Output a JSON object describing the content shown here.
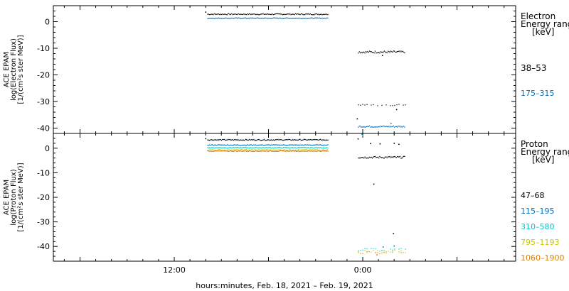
{
  "xlabel": "hours:minutes, Feb. 18, 2021 – Feb. 19, 2021",
  "x_ticks": [
    "12:00",
    "0:00"
  ],
  "chart_data": [
    {
      "type": "scatter",
      "panel": "electron",
      "ylabel": [
        "ACE EPAM",
        "log(Electron Flux)",
        "[1/(cm²s ster MeV)]"
      ],
      "ylim": [
        -42,
        6
      ],
      "yticks": [
        0,
        -10,
        -20,
        -30,
        -40
      ],
      "legend_title": [
        "Electron",
        "Energy range",
        "[keV]"
      ],
      "series": [
        {
          "name": "38–53",
          "color": "#000000",
          "segments": [
            {
              "x": [
                -9.9,
                -2.2
              ],
              "y": 2.8,
              "jitter": 0.2
            },
            {
              "x": [
                -0.3,
                2.7
              ],
              "y": -11.4,
              "jitter": 0.4
            },
            {
              "x": [
                -0.3,
                2.7
              ],
              "y": -31.3,
              "jitter": 0.4,
              "sparse": true
            }
          ],
          "points": [
            {
              "x": -10.0,
              "y": 3.6
            },
            {
              "x": 2.15,
              "y": -33.0
            },
            {
              "x": 1.25,
              "y": -12.7
            },
            {
              "x": -0.35,
              "y": -36.5
            }
          ]
        },
        {
          "name": "175–315",
          "color": "#0070c0",
          "segments": [
            {
              "x": [
                -9.9,
                -2.2
              ],
              "y": 1.3,
              "jitter": 0.15
            },
            {
              "x": [
                -0.3,
                2.7
              ],
              "y": -39.4,
              "jitter": 0.3
            }
          ],
          "points": [
            {
              "x": 1.8,
              "y": -38.2
            }
          ]
        }
      ]
    },
    {
      "type": "scatter",
      "panel": "proton",
      "ylabel": [
        "ACE EPAM",
        "log(Proton Flux)",
        "[1/(cm²s ster MeV)]"
      ],
      "ylim": [
        -46,
        6
      ],
      "yticks": [
        0,
        -10,
        -20,
        -30,
        -40
      ],
      "legend_title": [
        "Proton",
        "Energy range",
        "[keV]"
      ],
      "series": [
        {
          "name": "47–68",
          "color": "#000000",
          "segments": [
            {
              "x": [
                -9.9,
                -2.2
              ],
              "y": 3.4,
              "jitter": 0.2
            },
            {
              "x": [
                -0.3,
                2.7
              ],
              "y": -3.7,
              "jitter": 0.4
            }
          ],
          "points": [
            {
              "x": -10.0,
              "y": 3.9
            },
            {
              "x": 0.5,
              "y": 1.9
            },
            {
              "x": 1.1,
              "y": 1.8
            },
            {
              "x": 2.0,
              "y": 2.0
            },
            {
              "x": 2.3,
              "y": 1.6
            },
            {
              "x": 0.7,
              "y": -14.6
            },
            {
              "x": 1.95,
              "y": -34.8
            },
            {
              "x": -0.3,
              "y": 3.8
            }
          ]
        },
        {
          "name": "115–195",
          "color": "#0070c0",
          "segments": [
            {
              "x": [
                -9.9,
                -2.2
              ],
              "y": 1.3,
              "jitter": 0.15
            }
          ],
          "points": [
            {
              "x": -0.05,
              "y": 5.7
            },
            {
              "x": 1.3,
              "y": -40.2
            },
            {
              "x": 2.0,
              "y": -39.8
            }
          ]
        },
        {
          "name": "310–580",
          "color": "#00c8c8",
          "segments": [
            {
              "x": [
                -9.9,
                -2.2
              ],
              "y": 0.2,
              "jitter": 0.15
            },
            {
              "x": [
                -0.3,
                2.7
              ],
              "y": -41.3,
              "jitter": 0.5,
              "sparse": true
            }
          ],
          "points": [
            {
              "x": 0.0,
              "y": 5.2
            }
          ]
        },
        {
          "name": "795–1193",
          "color": "#c8c800",
          "segments": [
            {
              "x": [
                -9.9,
                -2.2
              ],
              "y": -0.7,
              "jitter": 0.15
            },
            {
              "x": [
                -0.3,
                2.7
              ],
              "y": -42.0,
              "jitter": 0.5,
              "sparse": true
            }
          ],
          "points": []
        },
        {
          "name": "1060–1900",
          "color": "#e08000",
          "segments": [
            {
              "x": [
                -9.9,
                -2.2
              ],
              "y": -1.2,
              "jitter": 0.15
            },
            {
              "x": [
                -0.3,
                2.7
              ],
              "y": -42.4,
              "jitter": 0.5,
              "sparse": true
            }
          ],
          "points": [
            {
              "x": 0.9,
              "y": -43.4
            }
          ]
        }
      ]
    }
  ]
}
